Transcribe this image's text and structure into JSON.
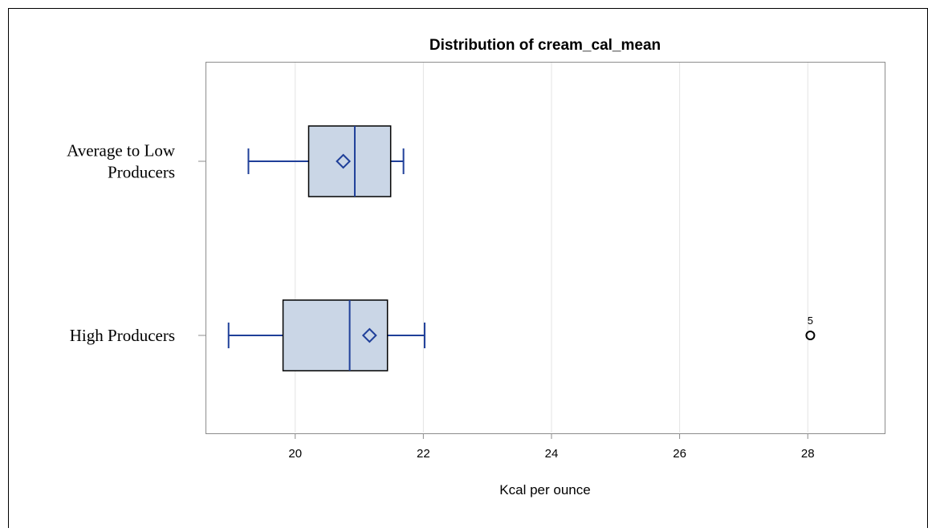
{
  "chart_data": {
    "type": "box",
    "title": "Distribution of cream_cal_mean",
    "xlabel": "Kcal per ounce",
    "ylabel": "",
    "xlim": [
      18.6,
      29.2
    ],
    "xticks": [
      20,
      22,
      24,
      26,
      28
    ],
    "xtick_labels": [
      "20",
      "22",
      "24",
      "26",
      "28"
    ],
    "grid": "vertical",
    "categories": [
      "Average to Low\nProducers",
      "High Producers"
    ],
    "category_lines": [
      [
        "Average to Low",
        "Producers"
      ],
      [
        "High Producers"
      ]
    ],
    "boxes": [
      {
        "category": "Average to Low Producers",
        "min": 19.27,
        "q1": 20.21,
        "median": 20.93,
        "q3": 21.49,
        "max": 21.69,
        "mean": 20.75,
        "outliers": []
      },
      {
        "category": "High Producers",
        "min": 18.96,
        "q1": 19.81,
        "median": 20.85,
        "q3": 21.44,
        "max": 22.02,
        "mean": 21.16,
        "outliers": [
          {
            "value": 28.04,
            "label": "5"
          }
        ]
      }
    ],
    "colors": {
      "box_fill": "#cad6e6",
      "box_edge": "#000000",
      "whisker": "#1f3f99",
      "median": "#1f3f99",
      "mean_marker": "#1f3f99",
      "outlier": "#000000",
      "grid": "#e3e3e3",
      "frame": "#8c8c8c"
    }
  }
}
